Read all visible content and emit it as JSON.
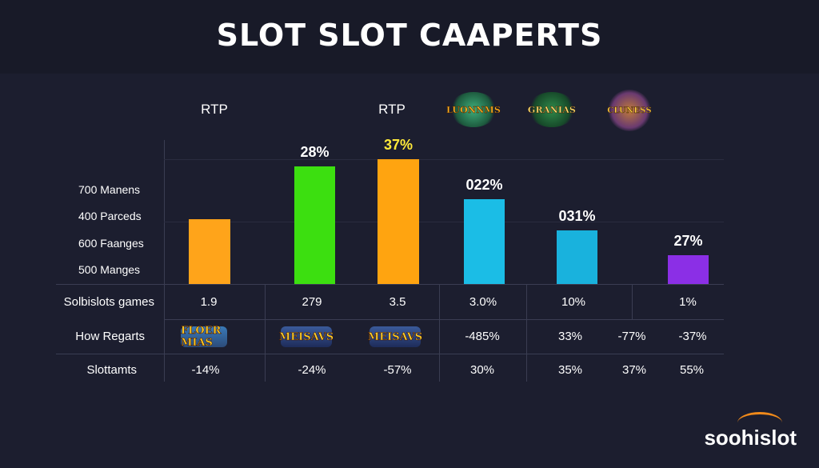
{
  "title": "SLOT SLOT CAAPERTS",
  "title_mark": "*",
  "column_headers": [
    "RTP",
    "RTP"
  ],
  "badges": [
    "LUONNMS",
    "GRANIAS",
    "CLUNESS"
  ],
  "y_labels": [
    "700 Manens",
    "400 Parceds",
    "600 Faanges",
    "500 Manges"
  ],
  "chart_data": {
    "type": "bar",
    "title": "SLOT SLOT CAAPERTS",
    "bars": [
      {
        "label": "",
        "value": 27.0,
        "color": "#ffa41a"
      },
      {
        "label": "28%",
        "value": 49.0,
        "color": "#3cdf10"
      },
      {
        "label": "37%",
        "label_color": "#ffea3a",
        "value": 52.0,
        "color": "#ffa410"
      },
      {
        "label": "022%",
        "value": 35.5,
        "color": "#1bbde6"
      },
      {
        "label": "031%",
        "value": 22.5,
        "color": "#19b2dd"
      },
      {
        "label": "27%",
        "value": 12.0,
        "color": "#8b2fe6"
      }
    ],
    "ylim": [
      0,
      60
    ],
    "grid": true
  },
  "table": {
    "rows": [
      {
        "label": "Solbislots games",
        "cells": [
          "1.9",
          "279",
          "3.5",
          "3.0%",
          "10%",
          "",
          "1%"
        ]
      },
      {
        "label": "How Regarts",
        "cells": [
          "",
          "",
          "",
          "-485%",
          "33%",
          "-77%",
          "-37%"
        ],
        "logos": [
          "FLOER MIAS",
          "MEISAVS",
          "MEISAVS"
        ]
      },
      {
        "label": "Slottamts",
        "cells": [
          "-14%",
          "-24%",
          "-57%",
          "30%",
          "35%",
          "37%",
          "55%"
        ]
      }
    ]
  },
  "brand": "soohislot",
  "colors": {
    "background": "#1c1e2f",
    "accent": "#f08a1a"
  }
}
